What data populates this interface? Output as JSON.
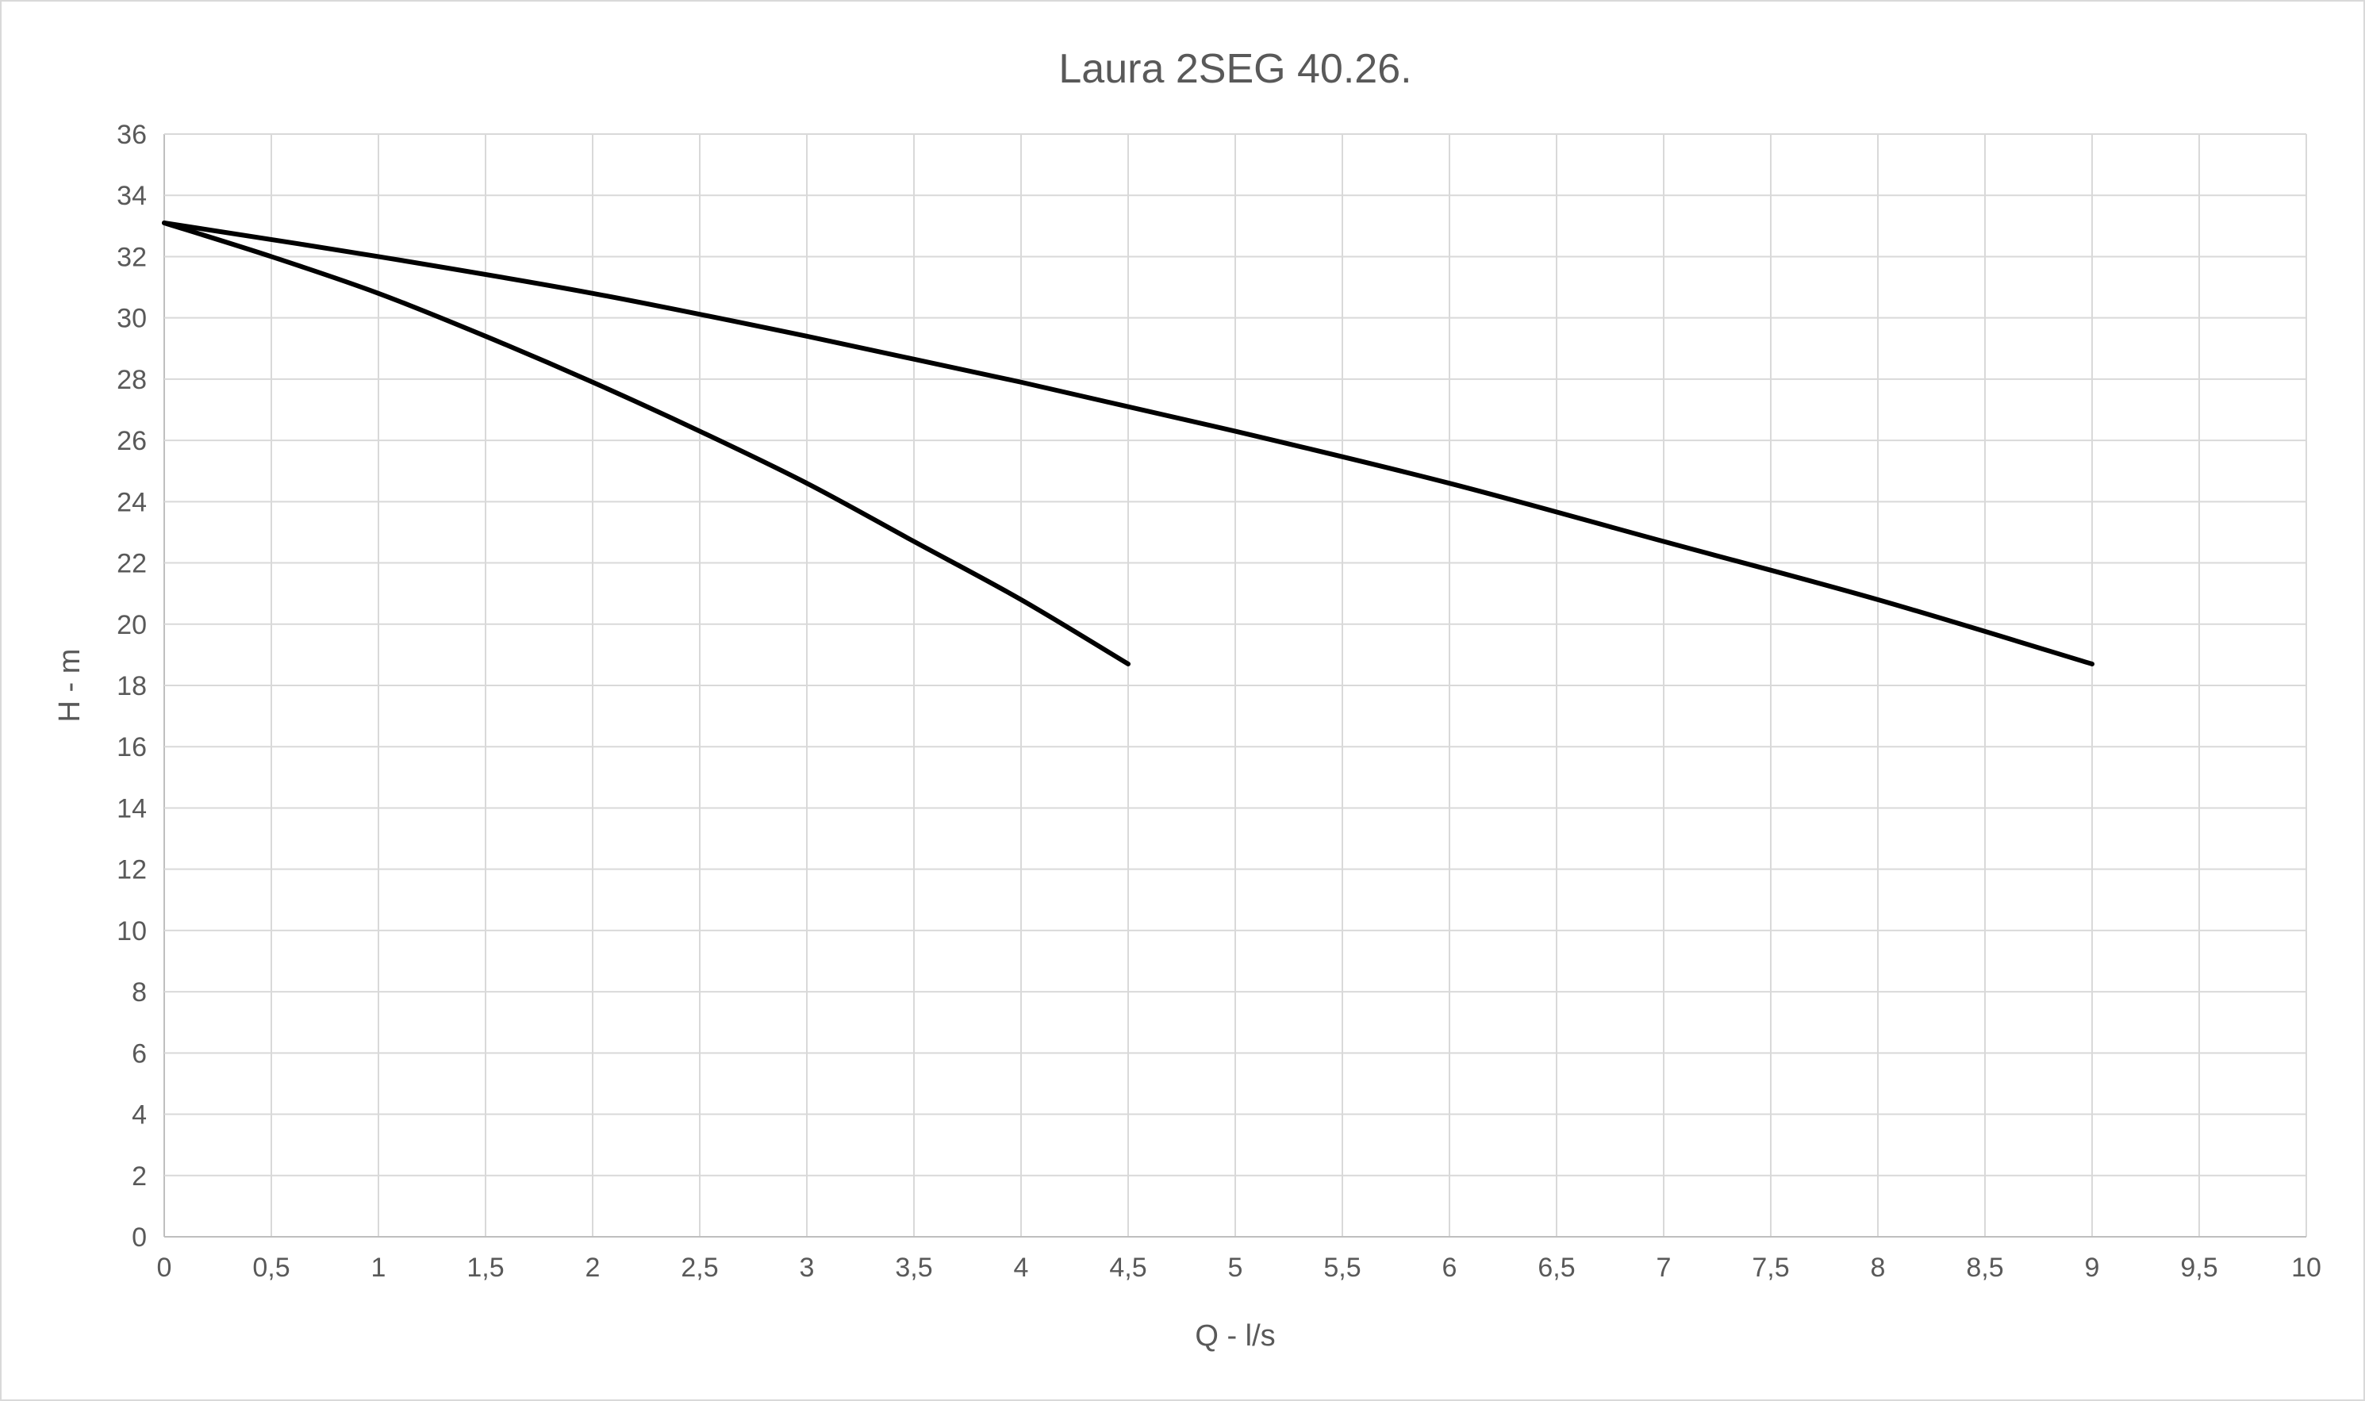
{
  "chart_data": {
    "type": "line",
    "title": "Laura 2SEG 40.26.",
    "xlabel": "Q - l/s",
    "ylabel": "H - m",
    "xlim": [
      0,
      10
    ],
    "ylim": [
      0,
      36
    ],
    "xticks": [
      "0",
      "0,5",
      "1",
      "1,5",
      "2",
      "2,5",
      "3",
      "3,5",
      "4",
      "4,5",
      "5",
      "5,5",
      "6",
      "6,5",
      "7",
      "7,5",
      "8",
      "8,5",
      "9",
      "9,5",
      "10"
    ],
    "yticks": [
      "0",
      "2",
      "4",
      "6",
      "8",
      "10",
      "12",
      "14",
      "16",
      "18",
      "20",
      "22",
      "24",
      "26",
      "28",
      "30",
      "32",
      "34",
      "36"
    ],
    "grid": true,
    "legend": "none",
    "series": [
      {
        "color": "#000000",
        "x": [
          0,
          0.5,
          1,
          1.5,
          2,
          2.5,
          3,
          3.5,
          4,
          4.5
        ],
        "y": [
          33.1,
          32.0,
          30.8,
          29.4,
          27.9,
          26.3,
          24.6,
          22.7,
          20.8,
          18.7
        ]
      },
      {
        "color": "#000000",
        "x": [
          0,
          1,
          2,
          3,
          4,
          5,
          6,
          7,
          8,
          9
        ],
        "y": [
          33.1,
          32.0,
          30.8,
          29.4,
          27.9,
          26.3,
          24.6,
          22.7,
          20.8,
          18.7
        ]
      }
    ]
  }
}
